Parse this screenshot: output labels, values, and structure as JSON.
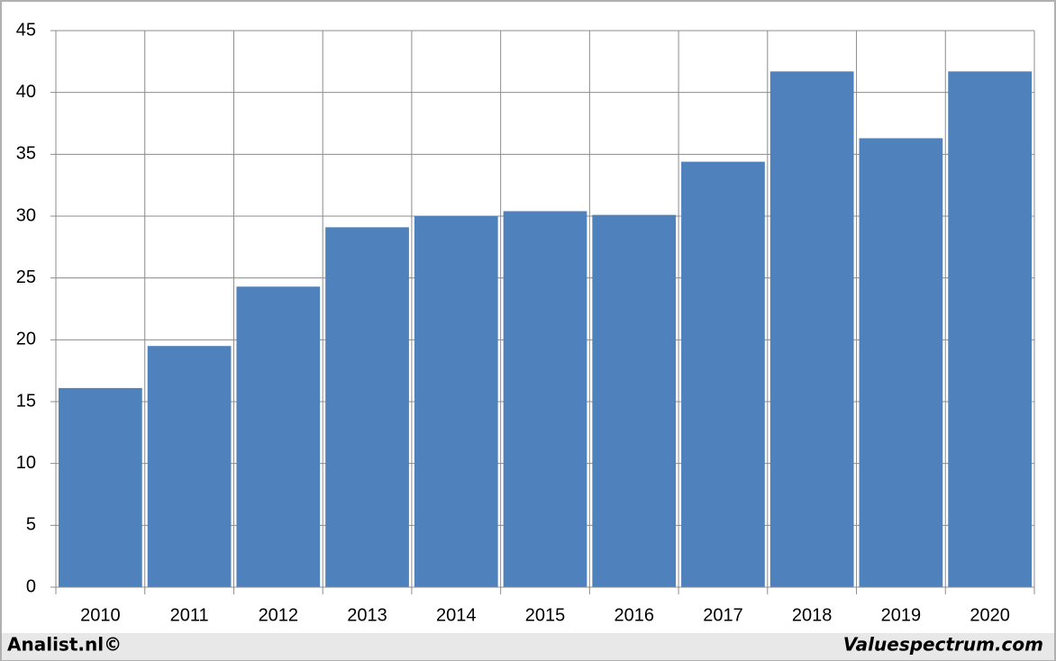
{
  "chart_data": {
    "type": "bar",
    "categories": [
      "2010",
      "2011",
      "2012",
      "2013",
      "2014",
      "2015",
      "2016",
      "2017",
      "2018",
      "2019",
      "2020"
    ],
    "values": [
      16.1,
      19.5,
      24.3,
      29.1,
      30.0,
      30.4,
      30.1,
      34.4,
      41.7,
      36.3,
      41.7
    ],
    "color": "#4f81bd",
    "ylim": [
      0,
      45
    ],
    "yticks": [
      0,
      5,
      10,
      15,
      20,
      25,
      30,
      35,
      40,
      45
    ],
    "grid": true
  },
  "footer": {
    "left": "Analist.nl©",
    "right": "Valuespectrum.com"
  }
}
